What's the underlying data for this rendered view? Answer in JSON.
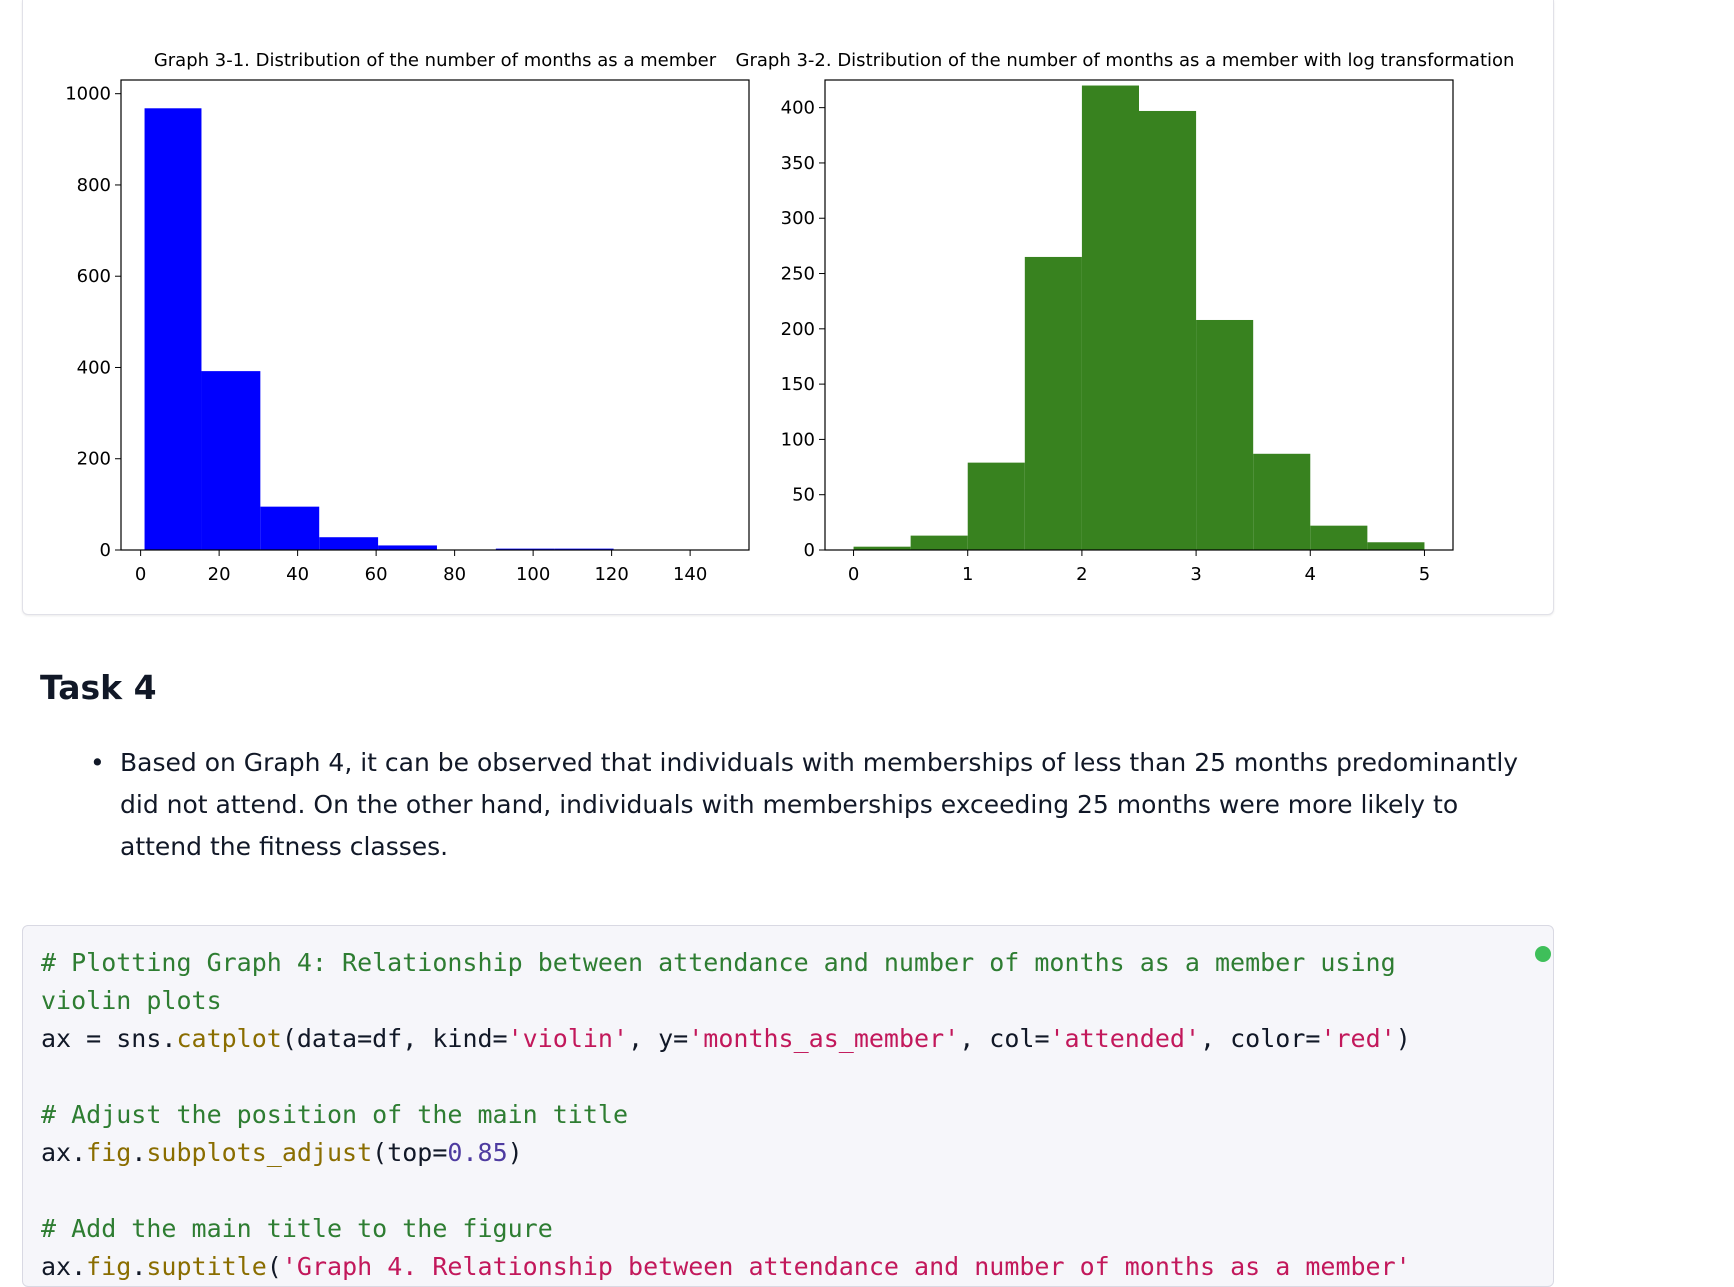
{
  "chart_data": [
    {
      "type": "bar",
      "title": "Graph 3-1. Distribution of the number of months as a member",
      "bar_color": "#0000ff",
      "x_ticks": [
        "0",
        "20",
        "40",
        "60",
        "80",
        "100",
        "120",
        "140"
      ],
      "y_ticks": [
        "0",
        "200",
        "400",
        "600",
        "800",
        "1000"
      ],
      "xlim": [
        -5,
        155
      ],
      "ylim": [
        0,
        1030
      ],
      "bins": [
        {
          "x0": 1,
          "x1": 15.5,
          "count": 968
        },
        {
          "x0": 15.5,
          "x1": 30.5,
          "count": 392
        },
        {
          "x0": 30.5,
          "x1": 45.5,
          "count": 95
        },
        {
          "x0": 45.5,
          "x1": 60.5,
          "count": 28
        },
        {
          "x0": 60.5,
          "x1": 75.5,
          "count": 10
        },
        {
          "x0": 75.5,
          "x1": 90.5,
          "count": 0
        },
        {
          "x0": 90.5,
          "x1": 105.5,
          "count": 3
        },
        {
          "x0": 105.5,
          "x1": 120.5,
          "count": 3
        }
      ]
    },
    {
      "type": "bar",
      "title": "Graph 3-2. Distribution of the number of months as a member with log transformation",
      "bar_color": "#38821f",
      "x_ticks": [
        "0",
        "1",
        "2",
        "3",
        "4",
        "5"
      ],
      "y_ticks": [
        "0",
        "50",
        "100",
        "150",
        "200",
        "250",
        "300",
        "350",
        "400"
      ],
      "xlim": [
        -0.25,
        5.25
      ],
      "ylim": [
        0,
        425
      ],
      "bins": [
        {
          "x0": 0,
          "x1": 0.5,
          "count": 3
        },
        {
          "x0": 0.5,
          "x1": 1.0,
          "count": 13
        },
        {
          "x0": 1.0,
          "x1": 1.5,
          "count": 79
        },
        {
          "x0": 1.5,
          "x1": 2.0,
          "count": 265
        },
        {
          "x0": 2.0,
          "x1": 2.5,
          "count": 420
        },
        {
          "x0": 2.5,
          "x1": 3.0,
          "count": 397
        },
        {
          "x0": 3.0,
          "x1": 3.5,
          "count": 208
        },
        {
          "x0": 3.5,
          "x1": 4.0,
          "count": 87
        },
        {
          "x0": 4.0,
          "x1": 4.5,
          "count": 22
        },
        {
          "x0": 4.5,
          "x1": 5.0,
          "count": 7
        }
      ]
    }
  ],
  "task": {
    "heading": "Task 4",
    "bullet_symbol": "•",
    "text": "Based on Graph 4, it can be observed that individuals with memberships of less than 25 months predominantly did not attend. On the other hand, individuals with memberships exceeding 25 months were more likely to attend the fitness classes."
  },
  "code_cell": {
    "status": "executed",
    "status_color": "#3fbf5a",
    "tokens": {
      "c1": "# Plotting Graph 4: Relationship between attendance and number of months as a member using violin plots",
      "l2a": "ax = sns.",
      "l2f": "catplot",
      "l2b": "(data=df, kind=",
      "l2s1": "'violin'",
      "l2c": ", y=",
      "l2s2": "'months_as_member'",
      "l2d": ", col=",
      "l2s3": "'attended'",
      "l2e": ", color=",
      "l2s4": "'red'",
      "l2g": ")",
      "c2": "# Adjust the position of the main title",
      "l4a": "ax.",
      "l4f1": "fig",
      "l4b": ".",
      "l4f2": "subplots_adjust",
      "l4c": "(top=",
      "l4n": "0.85",
      "l4d": ")",
      "c3": "# Add the main title to the figure",
      "l6a": "ax.",
      "l6f1": "fig",
      "l6b": ".",
      "l6f2": "suptitle",
      "l6c": "(",
      "l6s": "'Graph 4. Relationship between attendance and number of months as a member'"
    }
  }
}
